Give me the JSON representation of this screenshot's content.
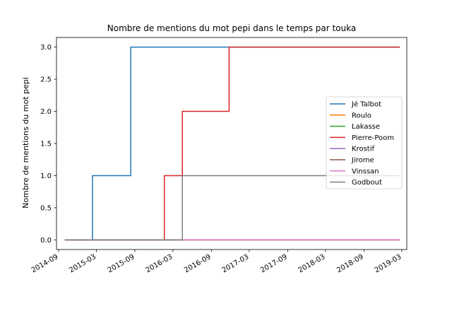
{
  "chart_data": {
    "type": "line",
    "step": "post",
    "title": "Nombre de mentions du mot pepi dans le temps par touka",
    "xlabel": "",
    "ylabel": "Nombre de mentions du mot pepi",
    "xlim": [
      "2014-08-22",
      "2019-03-25"
    ],
    "ylim": [
      -0.15,
      3.15
    ],
    "xticks": [
      "2014-09",
      "2015-03",
      "2015-09",
      "2016-03",
      "2016-09",
      "2017-03",
      "2017-09",
      "2018-03",
      "2018-09",
      "2019-03"
    ],
    "yticks": [
      0.0,
      0.5,
      1.0,
      1.5,
      2.0,
      2.5,
      3.0
    ],
    "ytick_labels": [
      "0.0",
      "0.5",
      "1.0",
      "1.5",
      "2.0",
      "2.5",
      "3.0"
    ],
    "grid": false,
    "legend_position": "center-right",
    "series": [
      {
        "name": "Jé Talbot",
        "color": "#1f77b4",
        "points": [
          [
            "2014-10-01",
            0
          ],
          [
            "2015-02-10",
            1
          ],
          [
            "2015-08-12",
            3
          ],
          [
            "2019-02-20",
            3
          ]
        ]
      },
      {
        "name": "Roulo",
        "color": "#ff7f0e",
        "points": [
          [
            "2014-10-01",
            0
          ],
          [
            "2019-02-20",
            0
          ]
        ]
      },
      {
        "name": "Lakasse",
        "color": "#2ca02c",
        "points": [
          [
            "2014-10-01",
            0
          ],
          [
            "2019-02-20",
            0
          ]
        ]
      },
      {
        "name": "Pierre-Poom",
        "color": "#d62728",
        "points": [
          [
            "2014-10-01",
            0
          ],
          [
            "2016-01-20",
            1
          ],
          [
            "2016-04-15",
            2
          ],
          [
            "2016-11-25",
            3
          ],
          [
            "2019-02-20",
            3
          ]
        ]
      },
      {
        "name": "Krostif",
        "color": "#9467bd",
        "points": [
          [
            "2014-10-01",
            0
          ],
          [
            "2019-02-20",
            0
          ]
        ]
      },
      {
        "name": "Jirome",
        "color": "#8c564b",
        "points": [
          [
            "2014-10-01",
            0
          ],
          [
            "2019-02-20",
            0
          ]
        ]
      },
      {
        "name": "Vinssan",
        "color": "#e377c2",
        "points": [
          [
            "2014-10-01",
            0
          ],
          [
            "2019-02-20",
            0
          ]
        ]
      },
      {
        "name": "Godbout",
        "color": "#7f7f7f",
        "points": [
          [
            "2014-10-01",
            0
          ],
          [
            "2016-04-15",
            1
          ],
          [
            "2019-02-20",
            1
          ]
        ]
      }
    ]
  }
}
